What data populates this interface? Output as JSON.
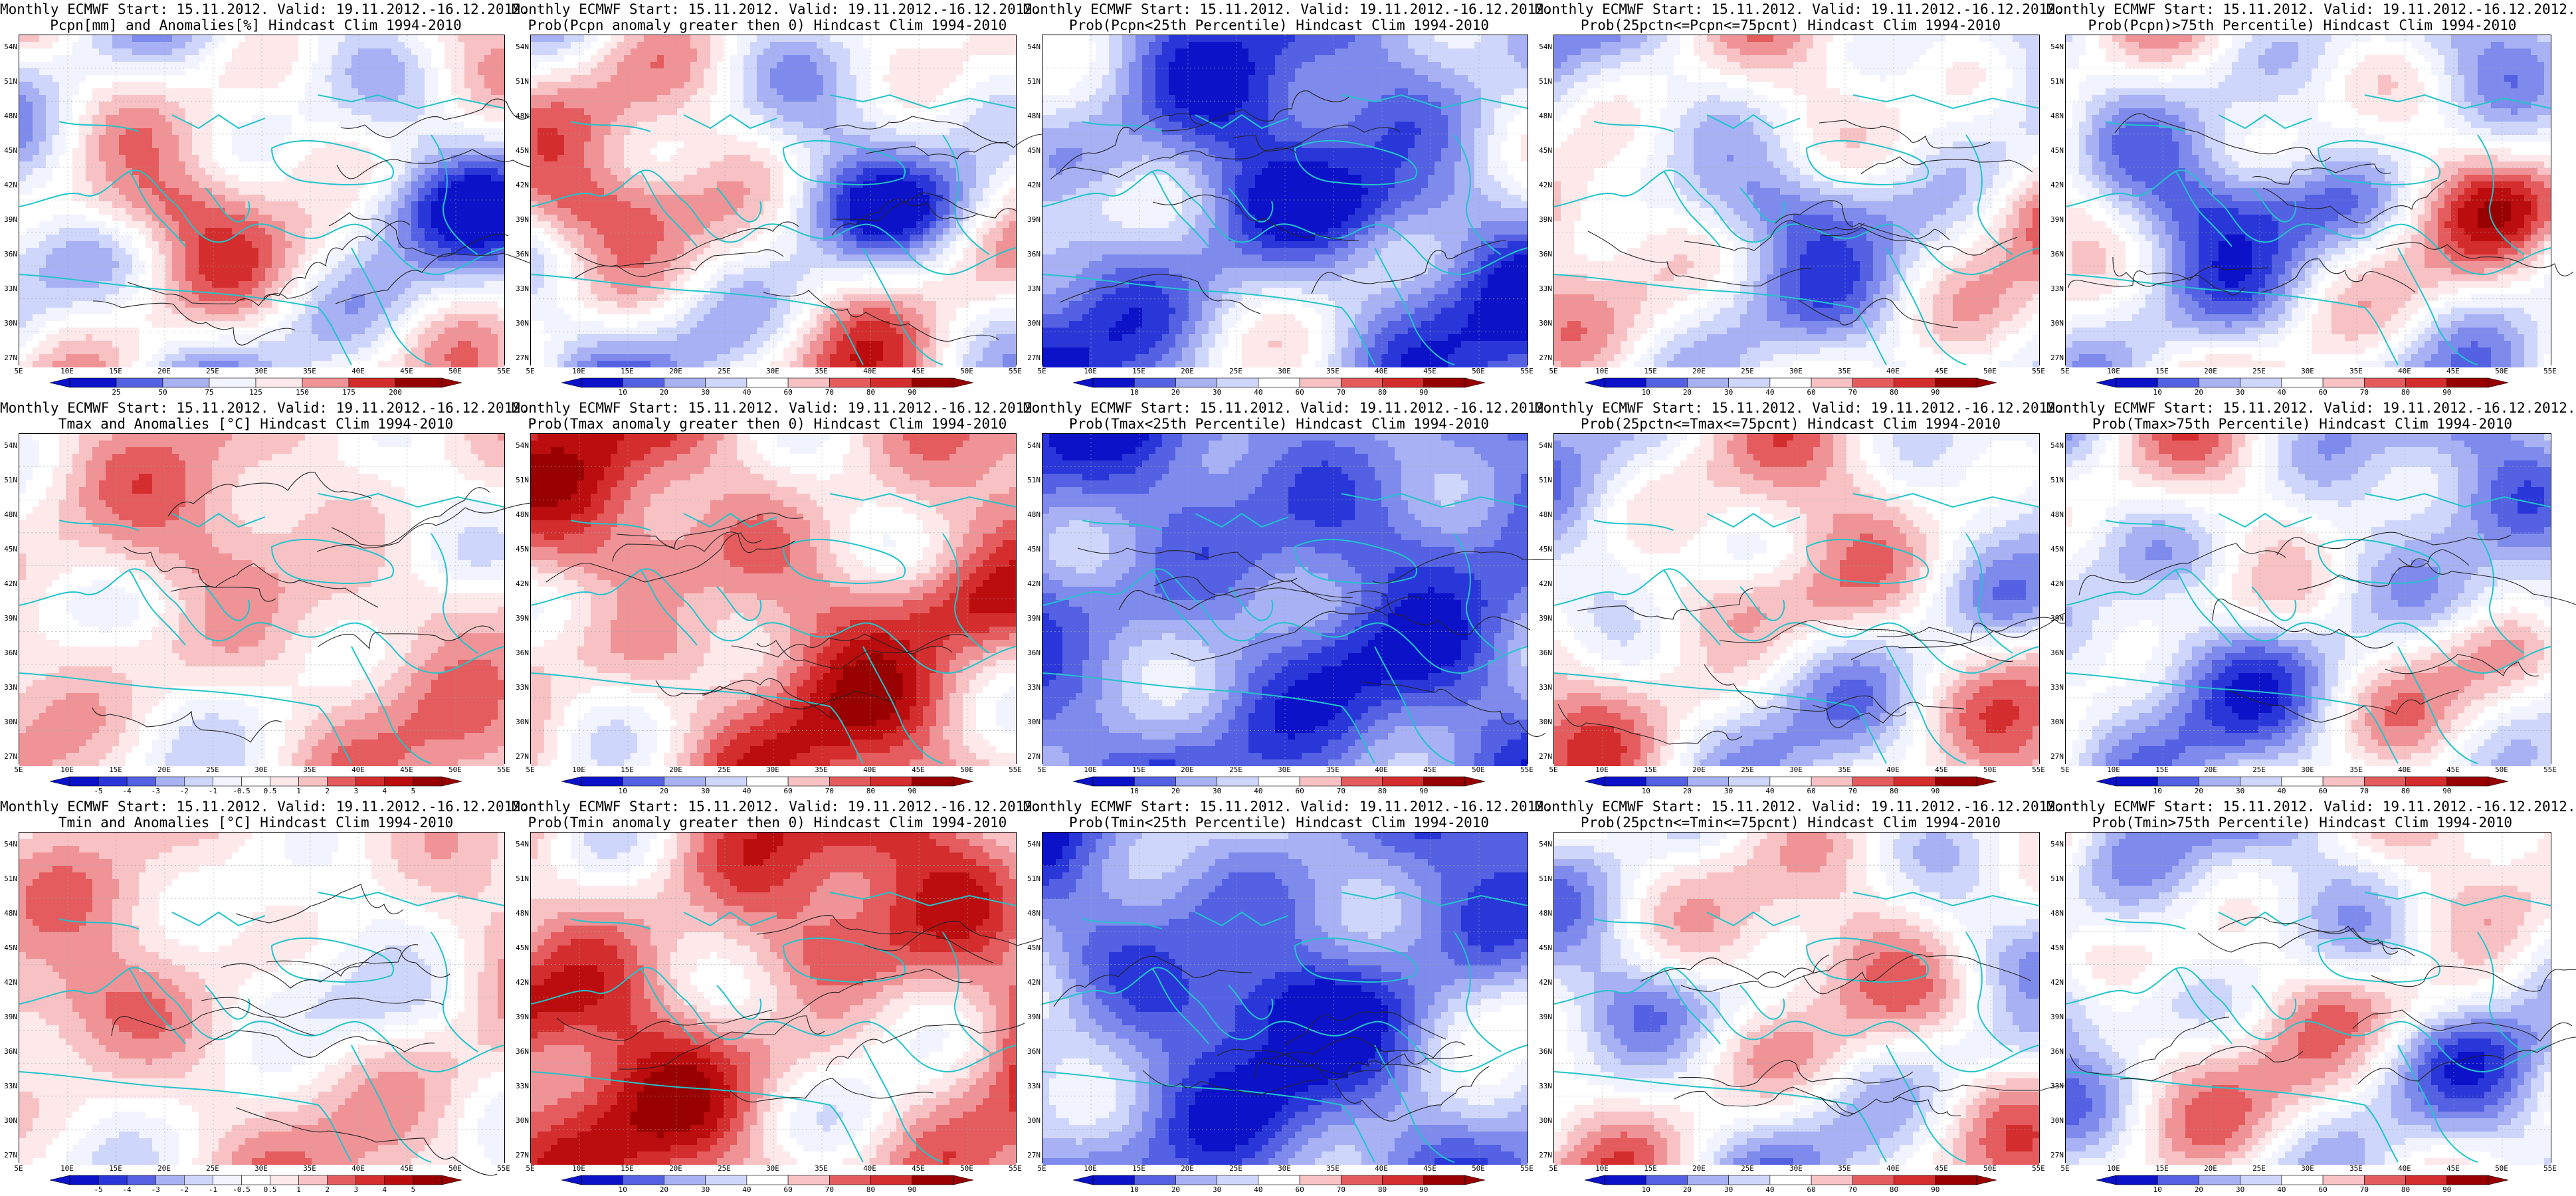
{
  "grid_labels": {
    "lat": [
      "54N",
      "51N",
      "48N",
      "45N",
      "42N",
      "39N",
      "36N",
      "33N",
      "30N",
      "27N"
    ],
    "lon": [
      "5E",
      "10E",
      "15E",
      "20E",
      "25E",
      "30E",
      "35E",
      "40E",
      "45E",
      "50E",
      "55E"
    ]
  },
  "colors": {
    "coast": "#21c4cc",
    "contour": "#222222",
    "white": "#ffffff",
    "blues": [
      "#f1f3ff",
      "#cfd6fb",
      "#a7b1f3",
      "#7e8aec",
      "#5361e2",
      "#2a37d8",
      "#0b12c8"
    ],
    "reds": [
      "#fde8ea",
      "#f8c2c4",
      "#ef9396",
      "#e45c5e",
      "#d42d2d",
      "#bb0d0d",
      "#980000"
    ]
  },
  "rows": [
    {
      "panels": [
        {
          "title1": "Monthly ECMWF Start: 15.11.2012. Valid: 19.11.2012.-16.12.2012.",
          "title2": "Pcpn[mm] and Anomalies[%] Hindcast Clim 1994-2010",
          "colorbar_labels": [
            "25",
            "50",
            "75",
            "125",
            "150",
            "175",
            "200"
          ],
          "bias": -0.05,
          "amp": 0.95,
          "seed": 3
        },
        {
          "title1": "Monthly ECMWF Start: 15.11.2012. Valid: 19.11.2012.-16.12.2012.",
          "title2": "Prob(Pcpn anomaly greater then 0) Hindcast Clim 1994-2010",
          "colorbar_labels": [
            "10",
            "20",
            "30",
            "40",
            "60",
            "70",
            "80",
            "90"
          ],
          "bias": -0.02,
          "amp": 0.95,
          "seed": 5
        },
        {
          "title1": "Monthly ECMWF Start: 15.11.2012. Valid: 19.11.2012.-16.12.2012.",
          "title2": "Prob(Pcpn<25th Percentile) Hindcast Clim 1994-2010",
          "colorbar_labels": [
            "10",
            "20",
            "30",
            "40",
            "60",
            "70",
            "80",
            "90"
          ],
          "bias": -0.55,
          "amp": 0.75,
          "seed": 7
        },
        {
          "title1": "Monthly ECMWF Start: 15.11.2012. Valid: 19.11.2012.-16.12.2012.",
          "title2": "Prob(25pctn<=Pcpn<=75pcnt) Hindcast Clim 1994-2010",
          "colorbar_labels": [
            "10",
            "20",
            "30",
            "40",
            "60",
            "70",
            "80",
            "90"
          ],
          "bias": -0.1,
          "amp": 0.8,
          "seed": 11
        },
        {
          "title1": "Monthly ECMWF Start: 15.11.2012. Valid: 19.11.2012.-16.12.2012.",
          "title2": "Prob(Pcpn)>75th Percentile) Hindcast Clim 1994-2010",
          "colorbar_labels": [
            "10",
            "20",
            "30",
            "40",
            "60",
            "70",
            "80",
            "90"
          ],
          "bias": -0.15,
          "amp": 0.95,
          "seed": 13
        }
      ]
    },
    {
      "panels": [
        {
          "title1": "Monthly ECMWF Start: 15.11.2012. Valid: 19.11.2012.-16.12.2012.",
          "title2": "Tmax and Anomalies [°C] Hindcast Clim 1994-2010",
          "colorbar_labels": [
            "-5",
            "-4",
            "-3",
            "-2",
            "-1",
            "-0.5",
            "0.5",
            "1",
            "2",
            "3",
            "4",
            "5"
          ],
          "bias": 0.2,
          "amp": 0.55,
          "seed": 17
        },
        {
          "title1": "Monthly ECMWF Start: 15.11.2012. Valid: 19.11.2012.-16.12.2012.",
          "title2": "Prob(Tmax anomaly greater then 0) Hindcast Clim 1994-2010",
          "colorbar_labels": [
            "10",
            "20",
            "30",
            "40",
            "60",
            "70",
            "80",
            "90"
          ],
          "bias": 0.4,
          "amp": 0.7,
          "seed": 19
        },
        {
          "title1": "Monthly ECMWF Start: 15.11.2012. Valid: 19.11.2012.-16.12.2012.",
          "title2": "Prob(Tmax<25th Percentile) Hindcast Clim 1994-2010",
          "colorbar_labels": [
            "10",
            "20",
            "30",
            "40",
            "60",
            "70",
            "80",
            "90"
          ],
          "bias": -0.65,
          "amp": 0.6,
          "seed": 23
        },
        {
          "title1": "Monthly ECMWF Start: 15.11.2012. Valid: 19.11.2012.-16.12.2012.",
          "title2": "Prob(25pctn<=Tmax<=75pcnt) Hindcast Clim 1994-2010",
          "colorbar_labels": [
            "10",
            "20",
            "30",
            "40",
            "60",
            "70",
            "80",
            "90"
          ],
          "bias": 0.0,
          "amp": 0.8,
          "seed": 29
        },
        {
          "title1": "Monthly ECMWF Start: 15.11.2012. Valid: 19.11.2012.-16.12.2012.",
          "title2": "Prob(Tmax>75th Percentile) Hindcast Clim 1994-2010",
          "colorbar_labels": [
            "10",
            "20",
            "30",
            "40",
            "60",
            "70",
            "80",
            "90"
          ],
          "bias": -0.2,
          "amp": 0.9,
          "seed": 31
        }
      ]
    },
    {
      "panels": [
        {
          "title1": "Monthly ECMWF Start: 15.11.2012. Valid: 19.11.2012.-16.12.2012.",
          "title2": "Tmin and Anomalies [°C] Hindcast Clim 1994-2010",
          "colorbar_labels": [
            "-5",
            "-4",
            "-3",
            "-2",
            "-1",
            "-0.5",
            "0.5",
            "1",
            "2",
            "3",
            "4",
            "5"
          ],
          "bias": 0.15,
          "amp": 0.5,
          "seed": 37
        },
        {
          "title1": "Monthly ECMWF Start: 15.11.2012. Valid: 19.11.2012.-16.12.2012.",
          "title2": "Prob(Tmin anomaly greater then 0) Hindcast Clim 1994-2010",
          "colorbar_labels": [
            "10",
            "20",
            "30",
            "40",
            "60",
            "70",
            "80",
            "90"
          ],
          "bias": 0.45,
          "amp": 0.75,
          "seed": 41
        },
        {
          "title1": "Monthly ECMWF Start: 15.11.2012. Valid: 19.11.2012.-16.12.2012.",
          "title2": "Prob(Tmin<25th Percentile) Hindcast Clim 1994-2010",
          "colorbar_labels": [
            "10",
            "20",
            "30",
            "40",
            "60",
            "70",
            "80",
            "90"
          ],
          "bias": -0.6,
          "amp": 0.65,
          "seed": 43
        },
        {
          "title1": "Monthly ECMWF Start: 15.11.2012. Valid: 19.11.2012.-16.12.2012.",
          "title2": "Prob(25pctn<=Tmin<=75pcnt) Hindcast Clim 1994-2010",
          "colorbar_labels": [
            "10",
            "20",
            "30",
            "40",
            "60",
            "70",
            "80",
            "90"
          ],
          "bias": 0.0,
          "amp": 0.85,
          "seed": 47
        },
        {
          "title1": "Monthly ECMWF Start: 15.11.2012. Valid: 19.11.2012.-16.12.2012.",
          "title2": "Prob(Tmin>75th Percentile) Hindcast Clim 1994-2010",
          "colorbar_labels": [
            "10",
            "20",
            "30",
            "40",
            "60",
            "70",
            "80",
            "90"
          ],
          "bias": -0.1,
          "amp": 0.9,
          "seed": 53
        }
      ]
    }
  ]
}
